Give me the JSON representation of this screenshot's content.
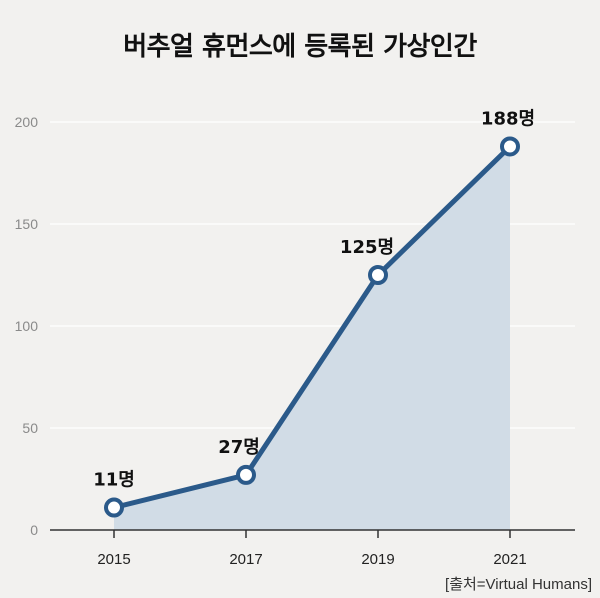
{
  "chart_data": {
    "type": "line",
    "title": "버추얼 휴먼스에 등록된 가상인간",
    "x": [
      "2015",
      "2017",
      "2019",
      "2021"
    ],
    "values": [
      11,
      27,
      125,
      188
    ],
    "data_labels": [
      "11명",
      "27명",
      "125명",
      "188명"
    ],
    "y_ticks": [
      "0",
      "50",
      "100",
      "150",
      "200"
    ],
    "ylim": [
      0,
      200
    ],
    "grid": true,
    "source": "[출처=Virtual Humans]",
    "colors": {
      "line": "#2b5a8a",
      "area": "#d1dce6",
      "marker_fill": "#ffffff",
      "grid": "#ffffff",
      "baseline": "#333333"
    }
  }
}
